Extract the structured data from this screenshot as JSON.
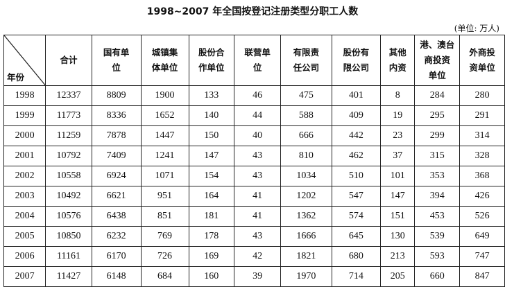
{
  "title": "1998~2007 年全国按登记注册类型分职工人数",
  "unit": "(单位: 万人)",
  "table": {
    "corner_label": "年份",
    "headers": [
      "合计",
      "国有单\n位",
      "城镇集\n体单位",
      "股份合\n作单位",
      "联营单\n位",
      "有限责\n任公司",
      "股份有\n限公司",
      "其他\n内资",
      "港、澳台\n商投资\n单位",
      "外商投\n资单位"
    ],
    "rows": [
      [
        "1998",
        "12337",
        "8809",
        "1900",
        "133",
        "46",
        "475",
        "401",
        "8",
        "284",
        "280"
      ],
      [
        "1999",
        "11773",
        "8336",
        "1652",
        "140",
        "44",
        "588",
        "409",
        "19",
        "295",
        "291"
      ],
      [
        "2000",
        "11259",
        "7878",
        "1447",
        "150",
        "40",
        "666",
        "442",
        "23",
        "299",
        "314"
      ],
      [
        "2001",
        "10792",
        "7409",
        "1241",
        "147",
        "43",
        "810",
        "462",
        "37",
        "315",
        "328"
      ],
      [
        "2002",
        "10558",
        "6924",
        "1071",
        "154",
        "43",
        "1034",
        "510",
        "101",
        "353",
        "368"
      ],
      [
        "2003",
        "10492",
        "6621",
        "951",
        "164",
        "41",
        "1202",
        "547",
        "147",
        "394",
        "426"
      ],
      [
        "2004",
        "10576",
        "6438",
        "851",
        "181",
        "41",
        "1362",
        "574",
        "151",
        "453",
        "526"
      ],
      [
        "2005",
        "10850",
        "6232",
        "769",
        "178",
        "43",
        "1666",
        "645",
        "130",
        "539",
        "649"
      ],
      [
        "2006",
        "11161",
        "6170",
        "726",
        "169",
        "42",
        "1821",
        "680",
        "213",
        "593",
        "747"
      ],
      [
        "2007",
        "11427",
        "6148",
        "684",
        "160",
        "39",
        "1970",
        "714",
        "205",
        "660",
        "847"
      ]
    ]
  }
}
